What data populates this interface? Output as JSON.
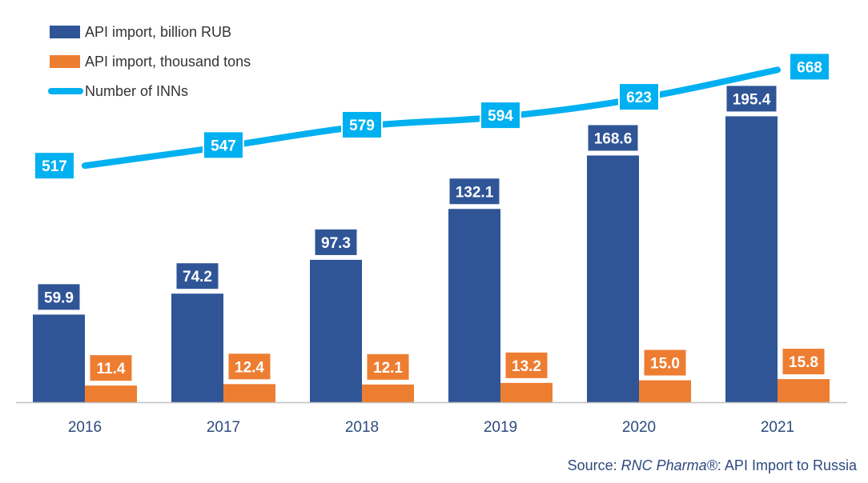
{
  "colors": {
    "rub": "#2F5597",
    "tons": "#ED7D31",
    "inns": "#00B0F0",
    "axis": "#BFBFBF",
    "tick_text": "#2E4A7D"
  },
  "source": {
    "prefix": "Source: ",
    "brand": "RNC Pharma®",
    "suffix": ": API Import to Russia"
  },
  "chart_data": {
    "type": "bar",
    "title": "",
    "xlabel": "",
    "ylabel": "",
    "categories": [
      "2016",
      "2017",
      "2018",
      "2019",
      "2020",
      "2021"
    ],
    "ylim": [
      0,
      200
    ],
    "line_ylim": [
      400,
      700
    ],
    "grid": false,
    "legend_position": "top-left",
    "series": [
      {
        "name": "API import, billion RUB",
        "kind": "bar",
        "color": "#2F5597",
        "values": [
          59.9,
          74.2,
          97.3,
          132.1,
          168.6,
          195.4
        ],
        "labels": [
          "59.9",
          "74.2",
          "97.3",
          "132.1",
          "168.6",
          "195.4"
        ]
      },
      {
        "name": "API import, thousand tons",
        "kind": "bar",
        "color": "#ED7D31",
        "values": [
          11.4,
          12.4,
          12.1,
          13.2,
          15.0,
          15.8
        ],
        "labels": [
          "11.4",
          "12.4",
          "12.1",
          "13.2",
          "15.0",
          "15.8"
        ]
      },
      {
        "name": "Number of INNs",
        "kind": "line",
        "color": "#00B0F0",
        "values": [
          517,
          547,
          579,
          594,
          623,
          668
        ],
        "labels": [
          "517",
          "547",
          "579",
          "594",
          "623",
          "668"
        ]
      }
    ]
  }
}
